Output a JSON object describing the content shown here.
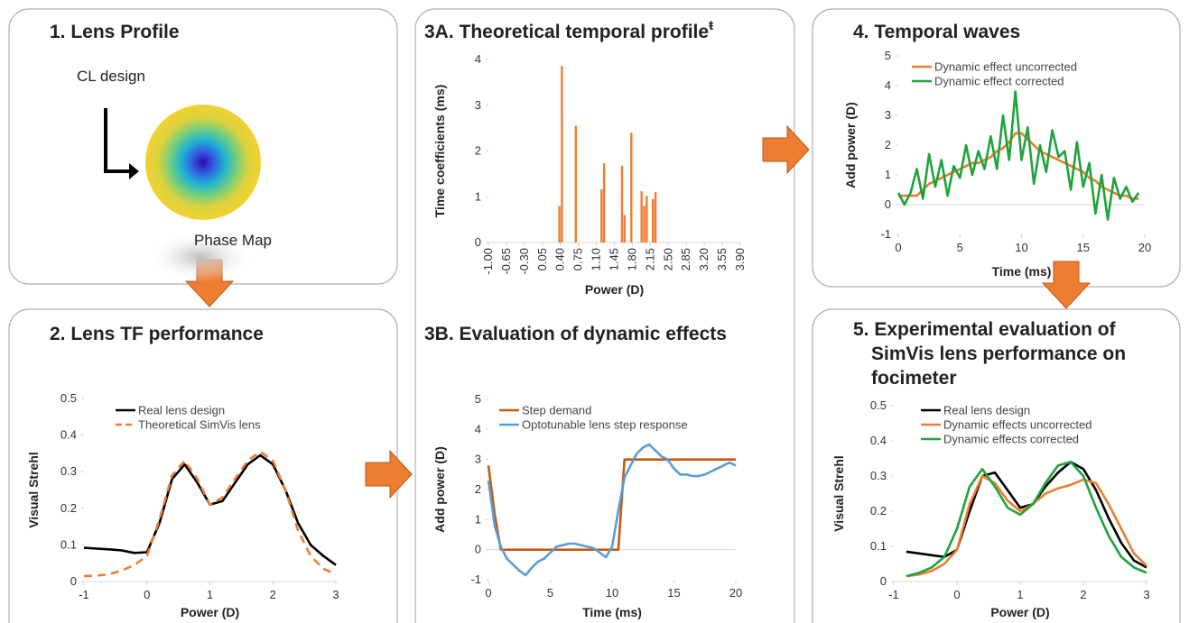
{
  "lens_profile": {
    "title": "1. Lens Profile",
    "design_label": "CL design",
    "map_label": "Phase Map"
  },
  "chart_data": [
    {
      "type": "line",
      "title": "2. Lens TF performance",
      "xlabel": "Power (D)",
      "ylabel": "Visual Strehl",
      "legend": "upper left",
      "x": [
        -1,
        -0.8,
        -0.6,
        -0.4,
        -0.2,
        0,
        0.2,
        0.4,
        0.6,
        0.8,
        1.0,
        1.2,
        1.4,
        1.6,
        1.8,
        2.0,
        2.2,
        2.4,
        2.6,
        2.8,
        3.0
      ],
      "series": [
        {
          "name": "Real lens design",
          "color": "#000000",
          "style": "solid",
          "values": [
            0.092,
            0.09,
            0.088,
            0.085,
            0.078,
            0.08,
            0.16,
            0.28,
            0.32,
            0.27,
            0.21,
            0.22,
            0.27,
            0.32,
            0.345,
            0.32,
            0.25,
            0.16,
            0.1,
            0.07,
            0.045
          ]
        },
        {
          "name": "Theoretical SimVis lens",
          "color": "#ed7d31",
          "style": "dashed",
          "values": [
            0.015,
            0.016,
            0.02,
            0.03,
            0.045,
            0.07,
            0.17,
            0.29,
            0.33,
            0.28,
            0.21,
            0.23,
            0.28,
            0.33,
            0.355,
            0.33,
            0.25,
            0.14,
            0.07,
            0.035,
            0.02
          ]
        }
      ],
      "xlim": [
        -1,
        3
      ],
      "xticks": [
        -1,
        0,
        1,
        2,
        3
      ],
      "ylim": [
        0,
        0.5
      ],
      "yticks": [
        0,
        0.1,
        0.2,
        0.3,
        0.4,
        0.5
      ]
    },
    {
      "type": "bar",
      "title": "3A. Theoretical temporal profile",
      "title_mark": "ŧ",
      "xlabel": "Power (D)",
      "ylabel": "Time coefficients (ms)",
      "color": "#ed7d31",
      "x": [
        0.38,
        0.43,
        0.7,
        1.2,
        1.25,
        1.6,
        1.65,
        1.78,
        1.98,
        2.03,
        2.08,
        2.2,
        2.25
      ],
      "values": [
        0.8,
        3.86,
        2.55,
        1.16,
        1.73,
        1.68,
        0.6,
        2.4,
        1.12,
        0.8,
        1.02,
        0.95,
        1.1
      ],
      "xlim": [
        -1,
        3.9
      ],
      "xticks": [
        {
          "value": -1,
          "label": "-1.00"
        },
        {
          "value": -0.65,
          "label": "-0.65"
        },
        {
          "value": -0.3,
          "label": "-0.30"
        },
        {
          "value": 0.05,
          "label": "0.05"
        },
        {
          "value": 0.4,
          "label": "0.40"
        },
        {
          "value": 0.75,
          "label": "0.75"
        },
        {
          "value": 1.1,
          "label": "1.10"
        },
        {
          "value": 1.45,
          "label": "1.45"
        },
        {
          "value": 1.8,
          "label": "1.80"
        },
        {
          "value": 2.15,
          "label": "2.15"
        },
        {
          "value": 2.5,
          "label": "2.50"
        },
        {
          "value": 2.85,
          "label": "2.85"
        },
        {
          "value": 3.2,
          "label": "3.20"
        },
        {
          "value": 3.55,
          "label": "3.55"
        },
        {
          "value": 3.9,
          "label": "3.90"
        }
      ],
      "ylim": [
        0,
        4
      ],
      "yticks": [
        0,
        1,
        2,
        3,
        4
      ]
    },
    {
      "type": "line",
      "title": "3B. Evaluation of dynamic effects",
      "xlabel": "Time (ms)",
      "ylabel": "Add power (D)",
      "legend": "upper left",
      "x": [
        0,
        0.5,
        1,
        1.5,
        2,
        2.5,
        3,
        3.5,
        4,
        4.5,
        5,
        5.5,
        6,
        6.5,
        7,
        7.5,
        8,
        8.5,
        9,
        9.5,
        10,
        10.5,
        11,
        11.5,
        12,
        12.5,
        13,
        13.5,
        14,
        14.5,
        15,
        15.5,
        16,
        16.5,
        17,
        17.5,
        18,
        18.5,
        19,
        19.5,
        20
      ],
      "series": [
        {
          "name": "Step demand",
          "color": "#c55a11",
          "style": "solid",
          "values": [
            2.8,
            1.2,
            0,
            0,
            0,
            0,
            0,
            0,
            0,
            0,
            0,
            0,
            0,
            0,
            0,
            0,
            0,
            0,
            0,
            0,
            0,
            0,
            3,
            3,
            3,
            3,
            3,
            3,
            3,
            3,
            3,
            3,
            3,
            3,
            3,
            3,
            3,
            3,
            3,
            3,
            3
          ]
        },
        {
          "name": "Optotunable lens step response",
          "color": "#5b9bd5",
          "style": "solid",
          "values": [
            2.3,
            0.8,
            0.1,
            -0.3,
            -0.5,
            -0.7,
            -0.85,
            -0.6,
            -0.4,
            -0.3,
            -0.1,
            0.1,
            0.15,
            0.2,
            0.2,
            0.15,
            0.1,
            0.05,
            -0.1,
            -0.25,
            0.1,
            1.3,
            2.4,
            2.8,
            3.2,
            3.4,
            3.5,
            3.3,
            3.1,
            3.0,
            2.7,
            2.5,
            2.5,
            2.45,
            2.45,
            2.5,
            2.6,
            2.7,
            2.8,
            2.9,
            2.8
          ]
        }
      ],
      "xlim": [
        0,
        20
      ],
      "xticks": [
        0,
        5,
        10,
        15,
        20
      ],
      "ylim": [
        -1,
        5
      ],
      "yticks": [
        -1,
        0,
        1,
        2,
        3,
        4,
        5
      ]
    },
    {
      "type": "line",
      "title": "4. Temporal waves",
      "xlabel": "Time (ms)",
      "ylabel": "Add power (D)",
      "legend": "upper left",
      "x": [
        0,
        0.5,
        1,
        1.5,
        2,
        2.5,
        3,
        3.5,
        4,
        4.5,
        5,
        5.5,
        6,
        6.5,
        7,
        7.5,
        8,
        8.5,
        9,
        9.5,
        10,
        10.5,
        11,
        11.5,
        12,
        12.5,
        13,
        13.5,
        14,
        14.5,
        15,
        15.5,
        16,
        16.5,
        17,
        17.5,
        18,
        18.5,
        19,
        19.5
      ],
      "series": [
        {
          "name": "Dynamic effect uncorrected",
          "color": "#ed7d31",
          "style": "solid",
          "values": [
            0.3,
            0.3,
            0.3,
            0.3,
            0.5,
            0.7,
            0.8,
            0.9,
            1.0,
            1.1,
            1.2,
            1.3,
            1.4,
            1.4,
            1.5,
            1.6,
            1.8,
            1.9,
            2.1,
            2.4,
            2.4,
            2.2,
            2.0,
            1.8,
            1.7,
            1.6,
            1.5,
            1.4,
            1.3,
            1.2,
            1.1,
            0.9,
            0.8,
            0.6,
            0.5,
            0.4,
            0.3,
            0.3,
            0.2,
            0.2
          ]
        },
        {
          "name": "Dynamic effect corrected",
          "color": "#1fa33c",
          "style": "solid",
          "values": [
            0.4,
            0,
            0.4,
            1.2,
            0.2,
            1.7,
            0.6,
            1.5,
            0.3,
            1.3,
            0.9,
            2.0,
            1.0,
            1.8,
            1.2,
            2.3,
            1.2,
            3.0,
            1.5,
            3.8,
            1.5,
            2.6,
            0.7,
            2.0,
            1.1,
            2.5,
            1.6,
            1.8,
            0.5,
            2.1,
            0.6,
            1.4,
            -0.3,
            1.0,
            -0.5,
            0.9,
            0.2,
            0.6,
            0.1,
            0.4
          ]
        }
      ],
      "xlim": [
        0,
        20
      ],
      "xticks": [
        0,
        5,
        10,
        15,
        20
      ],
      "ylim": [
        -1,
        5
      ],
      "yticks": [
        -1,
        0,
        1,
        2,
        3,
        4,
        5
      ]
    },
    {
      "type": "line",
      "title": [
        "5. Experimental evaluation of",
        "SimVis lens performance on",
        "focimeter"
      ],
      "xlabel": "Power (D)",
      "ylabel": "Visual Strehl",
      "legend": "upper left",
      "x": [
        -0.8,
        -0.6,
        -0.4,
        -0.2,
        0,
        0.2,
        0.4,
        0.6,
        0.8,
        1.0,
        1.2,
        1.4,
        1.6,
        1.8,
        2.0,
        2.2,
        2.4,
        2.6,
        2.8,
        3.0
      ],
      "series": [
        {
          "name": "Real lens design",
          "color": "#000000",
          "style": "solid",
          "values": [
            0.085,
            0.08,
            0.075,
            0.07,
            0.09,
            0.2,
            0.3,
            0.31,
            0.26,
            0.21,
            0.22,
            0.27,
            0.31,
            0.34,
            0.32,
            0.26,
            0.18,
            0.11,
            0.06,
            0.04
          ]
        },
        {
          "name": "Dynamic effects uncorrected",
          "color": "#ed7d31",
          "style": "solid",
          "values": [
            0.015,
            0.02,
            0.03,
            0.05,
            0.09,
            0.22,
            0.3,
            0.28,
            0.23,
            0.2,
            0.22,
            0.25,
            0.265,
            0.275,
            0.29,
            0.28,
            0.22,
            0.15,
            0.08,
            0.045
          ]
        },
        {
          "name": "Dynamic effects corrected",
          "color": "#1fa33c",
          "style": "solid",
          "values": [
            0.015,
            0.025,
            0.04,
            0.07,
            0.15,
            0.27,
            0.32,
            0.27,
            0.21,
            0.19,
            0.22,
            0.28,
            0.33,
            0.34,
            0.3,
            0.21,
            0.13,
            0.07,
            0.04,
            0.025
          ]
        }
      ],
      "xlim": [
        -1,
        3
      ],
      "xticks": [
        -1,
        0,
        1,
        2,
        3
      ],
      "ylim": [
        0,
        0.5
      ],
      "yticks": [
        0,
        0.1,
        0.2,
        0.3,
        0.4,
        0.5
      ]
    }
  ]
}
